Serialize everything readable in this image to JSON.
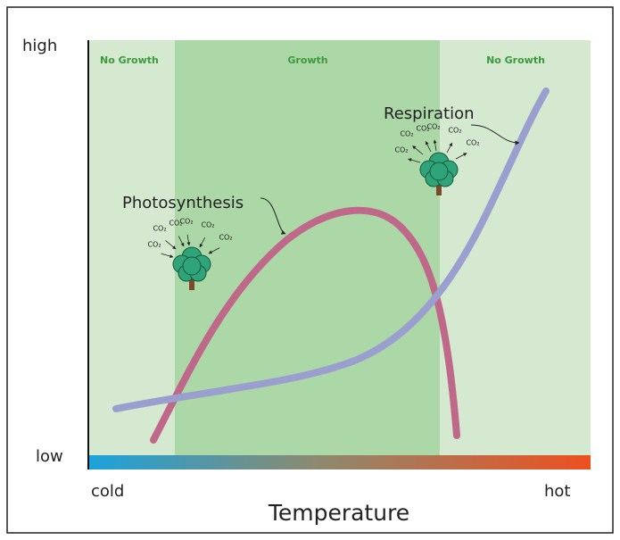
{
  "axis": {
    "high": "high",
    "low": "low",
    "cold": "cold",
    "hot": "hot",
    "title": "Temperature"
  },
  "zones": [
    "No Growth",
    "Growth",
    "No Growth"
  ],
  "curves": {
    "photosynthesis": "Photosynthesis",
    "respiration": "Respiration"
  },
  "gas": "CO₂"
}
